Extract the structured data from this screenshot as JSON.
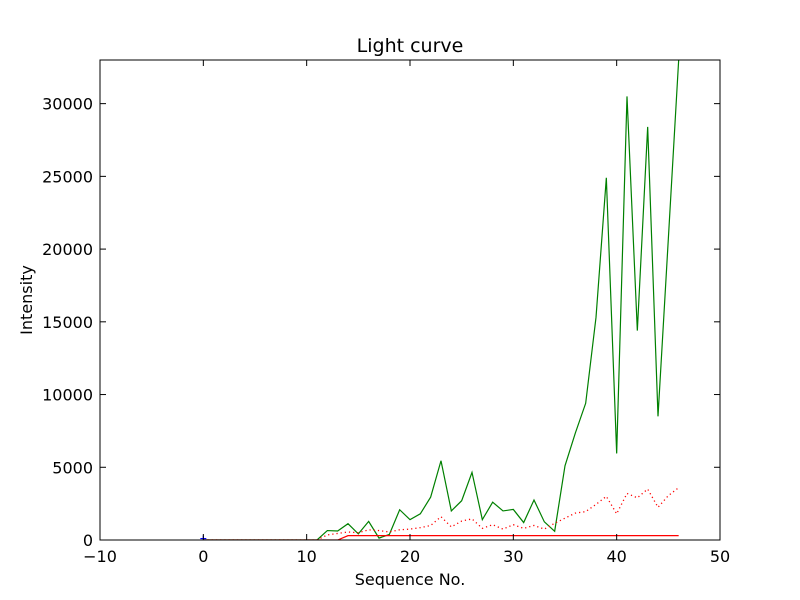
{
  "chart_data": {
    "type": "line",
    "title": "Light curve",
    "xlabel": "Sequence No.",
    "ylabel": "Intensity",
    "xlim": [
      -10,
      50
    ],
    "ylim": [
      0,
      33000
    ],
    "xticks": [
      "−10",
      "0",
      "10",
      "20",
      "30",
      "40",
      "50"
    ],
    "xtick_values": [
      -10,
      0,
      10,
      20,
      30,
      40,
      50
    ],
    "yticks": [
      "0",
      "5000",
      "10000",
      "15000",
      "20000",
      "25000",
      "30000"
    ],
    "ytick_values": [
      0,
      5000,
      10000,
      15000,
      20000,
      25000,
      30000
    ],
    "grid": false,
    "series": [
      {
        "color": "#008000",
        "style": "solid",
        "x": [
          0,
          1,
          2,
          3,
          4,
          5,
          6,
          7,
          8,
          9,
          10,
          11,
          12,
          13,
          14,
          15,
          16,
          17,
          18,
          19,
          20,
          21,
          22,
          23,
          24,
          25,
          26,
          27,
          28,
          29,
          30,
          31,
          32,
          33,
          34,
          35,
          36,
          37,
          38,
          39,
          40,
          41,
          42,
          43,
          44,
          45,
          46
        ],
        "y": [
          0,
          0,
          0,
          0,
          0,
          0,
          0,
          0,
          0,
          0,
          0,
          0,
          650,
          620,
          1120,
          420,
          1280,
          130,
          380,
          2080,
          1400,
          1800,
          2950,
          5450,
          2000,
          2700,
          4650,
          1400,
          2600,
          2000,
          2100,
          1200,
          2750,
          1250,
          600,
          5100,
          7350,
          9400,
          15300,
          24900,
          5950,
          30500,
          14400,
          28400,
          8500,
          20700,
          33000
        ]
      },
      {
        "color": "#ff0000",
        "style": "dotted",
        "x": [
          0,
          1,
          2,
          3,
          4,
          5,
          6,
          7,
          8,
          9,
          10,
          11,
          12,
          13,
          14,
          15,
          16,
          17,
          18,
          19,
          20,
          21,
          22,
          23,
          24,
          25,
          26,
          27,
          28,
          29,
          30,
          31,
          32,
          33,
          34,
          35,
          36,
          37,
          38,
          39,
          40,
          41,
          42,
          43,
          44,
          45,
          46
        ],
        "y": [
          0,
          0,
          0,
          0,
          0,
          0,
          0,
          0,
          0,
          0,
          0,
          0,
          350,
          450,
          550,
          500,
          700,
          650,
          550,
          700,
          750,
          850,
          1000,
          1600,
          900,
          1300,
          1450,
          800,
          1050,
          750,
          1050,
          800,
          1000,
          750,
          1150,
          1500,
          1850,
          1950,
          2450,
          3000,
          1800,
          3200,
          2900,
          3500,
          2250,
          3050,
          3600
        ]
      },
      {
        "color": "#ff0000",
        "style": "solid",
        "x": [
          0,
          1,
          2,
          3,
          4,
          5,
          6,
          7,
          8,
          9,
          10,
          11,
          12,
          13,
          14,
          15,
          16,
          17,
          18,
          19,
          20,
          21,
          22,
          23,
          24,
          25,
          26,
          27,
          28,
          29,
          30,
          31,
          32,
          33,
          34,
          35,
          36,
          37,
          38,
          39,
          40,
          41,
          42,
          43,
          44,
          45,
          46
        ],
        "y": [
          0,
          0,
          0,
          0,
          0,
          0,
          0,
          0,
          0,
          0,
          0,
          0,
          0,
          0,
          300,
          300,
          300,
          300,
          300,
          300,
          300,
          300,
          300,
          300,
          300,
          300,
          300,
          300,
          300,
          300,
          300,
          300,
          300,
          300,
          300,
          300,
          300,
          300,
          300,
          300,
          300,
          300,
          300,
          300,
          300,
          300,
          300
        ]
      },
      {
        "color": "#0000ff",
        "style": "marker",
        "x": [
          0
        ],
        "y": [
          100
        ]
      }
    ]
  }
}
